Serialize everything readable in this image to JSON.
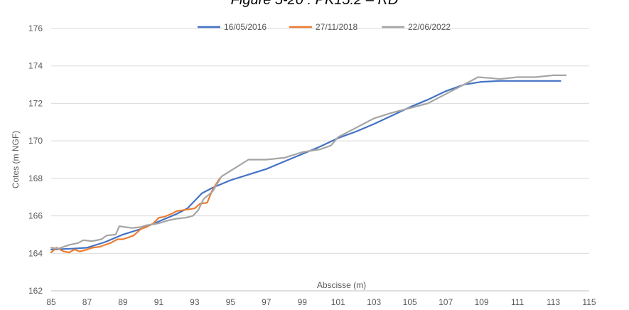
{
  "figure_caption": "Figure 5-20 : PK15.2 – RD",
  "chart_data": {
    "type": "line",
    "title": "",
    "xlabel": "Abscisse (m)",
    "ylabel": "Cotes (m NGF)",
    "xlim": [
      85,
      115
    ],
    "ylim": [
      162,
      176
    ],
    "xticks": [
      "85",
      "87",
      "89",
      "91",
      "93",
      "95",
      "97",
      "99",
      "101",
      "103",
      "105",
      "107",
      "109",
      "111",
      "113",
      "115"
    ],
    "yticks": [
      "162",
      "164",
      "166",
      "168",
      "170",
      "172",
      "174",
      "176"
    ],
    "grid": "horizontal",
    "legend": "top",
    "series": [
      {
        "name": "16/05/2016",
        "color": "#4472C4",
        "points": [
          [
            85.0,
            164.2
          ],
          [
            86.2,
            164.25
          ],
          [
            87.0,
            164.3
          ],
          [
            88.0,
            164.6
          ],
          [
            89.0,
            165.0
          ],
          [
            90.0,
            165.3
          ],
          [
            91.0,
            165.7
          ],
          [
            92.0,
            166.1
          ],
          [
            92.6,
            166.4
          ],
          [
            93.4,
            167.2
          ],
          [
            94.0,
            167.5
          ],
          [
            95.0,
            167.9
          ],
          [
            96.0,
            168.2
          ],
          [
            97.0,
            168.5
          ],
          [
            98.0,
            168.9
          ],
          [
            99.0,
            169.3
          ],
          [
            100.0,
            169.7
          ],
          [
            101.0,
            170.15
          ],
          [
            102.0,
            170.5
          ],
          [
            103.0,
            170.9
          ],
          [
            104.0,
            171.35
          ],
          [
            105.0,
            171.8
          ],
          [
            106.0,
            172.2
          ],
          [
            107.0,
            172.65
          ],
          [
            108.0,
            173.0
          ],
          [
            109.0,
            173.15
          ],
          [
            110.0,
            173.2
          ],
          [
            111.0,
            173.2
          ],
          [
            112.0,
            173.2
          ],
          [
            113.4,
            173.2
          ]
        ]
      },
      {
        "name": "27/11/2018",
        "color": "#ED7D31",
        "points": [
          [
            85.0,
            164.05
          ],
          [
            85.3,
            164.3
          ],
          [
            85.7,
            164.1
          ],
          [
            86.0,
            164.05
          ],
          [
            86.3,
            164.2
          ],
          [
            86.6,
            164.1
          ],
          [
            87.0,
            164.2
          ],
          [
            87.3,
            164.3
          ],
          [
            87.7,
            164.35
          ],
          [
            88.0,
            164.45
          ],
          [
            88.3,
            164.55
          ],
          [
            88.7,
            164.75
          ],
          [
            89.0,
            164.75
          ],
          [
            89.3,
            164.85
          ],
          [
            89.6,
            164.95
          ],
          [
            90.0,
            165.3
          ],
          [
            90.3,
            165.4
          ],
          [
            90.7,
            165.6
          ],
          [
            91.0,
            165.9
          ],
          [
            91.3,
            165.95
          ],
          [
            91.7,
            166.1
          ],
          [
            92.0,
            166.25
          ],
          [
            92.3,
            166.3
          ],
          [
            92.7,
            166.35
          ],
          [
            93.0,
            166.4
          ],
          [
            93.3,
            166.65
          ],
          [
            93.7,
            166.7
          ],
          [
            94.0,
            167.4
          ],
          [
            94.2,
            167.7
          ],
          [
            94.4,
            168.0
          ]
        ]
      },
      {
        "name": "22/06/2022",
        "color": "#A5A5A5",
        "points": [
          [
            85.0,
            164.3
          ],
          [
            85.4,
            164.25
          ],
          [
            86.0,
            164.45
          ],
          [
            86.5,
            164.55
          ],
          [
            86.8,
            164.7
          ],
          [
            87.3,
            164.65
          ],
          [
            87.8,
            164.75
          ],
          [
            88.1,
            164.95
          ],
          [
            88.6,
            165.0
          ],
          [
            88.8,
            165.45
          ],
          [
            89.5,
            165.35
          ],
          [
            90.0,
            165.4
          ],
          [
            90.3,
            165.5
          ],
          [
            90.7,
            165.55
          ],
          [
            91.0,
            165.6
          ],
          [
            91.5,
            165.75
          ],
          [
            92.0,
            165.85
          ],
          [
            92.5,
            165.9
          ],
          [
            92.9,
            166.0
          ],
          [
            93.2,
            166.3
          ],
          [
            93.5,
            166.9
          ],
          [
            94.0,
            167.3
          ],
          [
            94.5,
            168.1
          ],
          [
            95.0,
            168.4
          ],
          [
            96.0,
            169.0
          ],
          [
            97.0,
            169.0
          ],
          [
            98.0,
            169.1
          ],
          [
            99.0,
            169.4
          ],
          [
            100.0,
            169.55
          ],
          [
            100.6,
            169.75
          ],
          [
            101.0,
            170.2
          ],
          [
            102.0,
            170.7
          ],
          [
            103.0,
            171.2
          ],
          [
            104.0,
            171.5
          ],
          [
            105.0,
            171.75
          ],
          [
            106.0,
            172.0
          ],
          [
            107.0,
            172.5
          ],
          [
            108.0,
            173.0
          ],
          [
            108.8,
            173.4
          ],
          [
            109.5,
            173.35
          ],
          [
            110.0,
            173.3
          ],
          [
            111.0,
            173.4
          ],
          [
            112.0,
            173.4
          ],
          [
            113.0,
            173.5
          ],
          [
            113.7,
            173.5
          ]
        ]
      }
    ]
  }
}
